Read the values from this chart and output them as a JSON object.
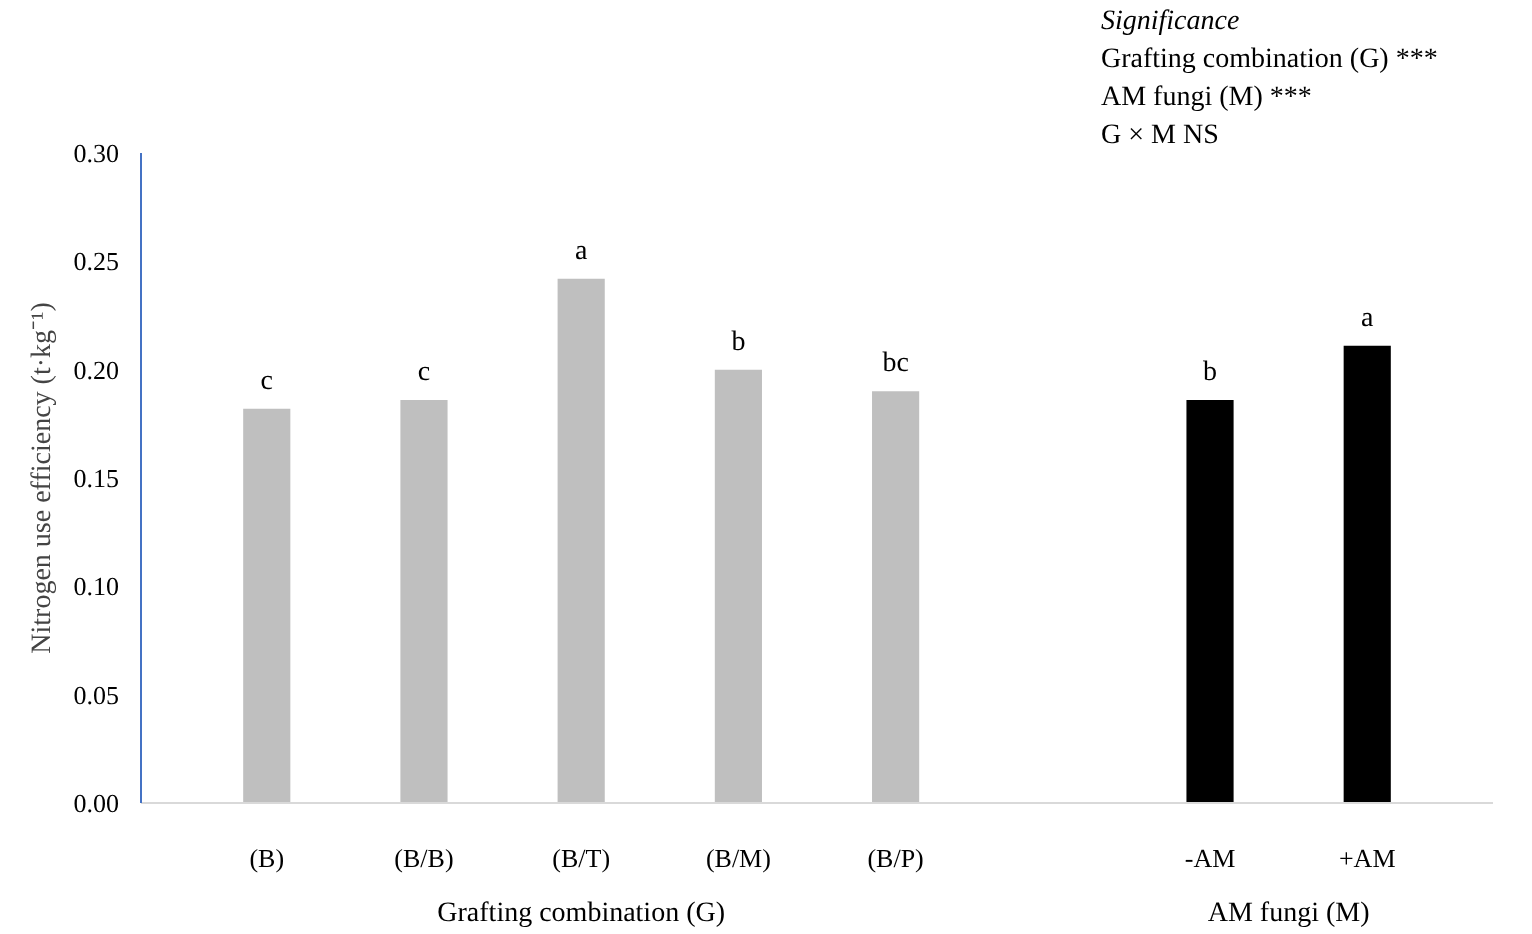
{
  "chart_data": {
    "type": "bar",
    "ylabel": "Nitrogen use efficiency (t·kg⁻¹)",
    "categories": [
      "(B)",
      "(B/B)",
      "(B/T)",
      "(B/M)",
      "(B/P)",
      null,
      "-AM",
      "+AM"
    ],
    "values": [
      0.182,
      0.186,
      0.242,
      0.2,
      0.19,
      null,
      0.186,
      0.211
    ],
    "colors": [
      "#bfbfbf",
      "#bfbfbf",
      "#bfbfbf",
      "#bfbfbf",
      "#bfbfbf",
      "#bfbfbf",
      "#000000",
      "#000000"
    ],
    "value_labels": [
      "c",
      "c",
      "a",
      "b",
      "bc",
      null,
      "b",
      "a"
    ],
    "ylim": [
      0,
      0.3
    ],
    "yticks": [
      {
        "value": 0,
        "label": "0.00"
      },
      {
        "value": 0.05,
        "label": "0.05"
      },
      {
        "value": 0.1,
        "label": "0.10"
      },
      {
        "value": 0.15,
        "label": "0.15"
      },
      {
        "value": 0.2,
        "label": "0.20"
      },
      {
        "value": 0.25,
        "label": "0.25"
      },
      {
        "value": 0.3,
        "label": "0.30"
      }
    ],
    "grid": false,
    "annotations": [
      "Grafting combination (G)",
      "AM fungi (M)",
      "Significance",
      "Grafting combination (G) ***",
      "AM fungi (M) ***",
      "G × M NS"
    ]
  }
}
